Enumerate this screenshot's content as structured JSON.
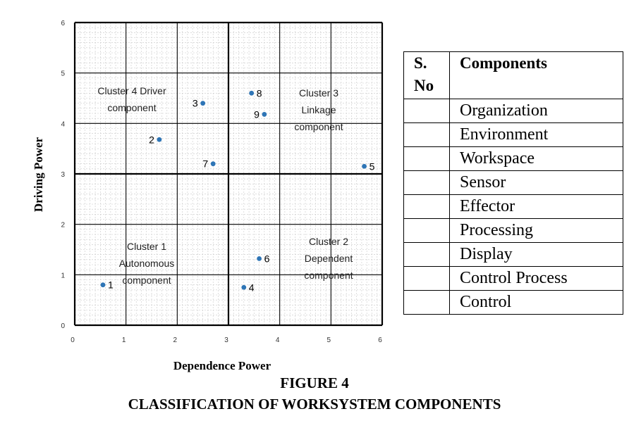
{
  "chart_data": {
    "type": "scatter",
    "xlabel": "Dependence Power",
    "ylabel": "Driving Power",
    "xlim": [
      0,
      6
    ],
    "ylim": [
      0,
      6
    ],
    "x_ticks": [
      "0",
      "1",
      "2",
      "3",
      "4",
      "5",
      "6"
    ],
    "y_ticks": [
      "0",
      "1",
      "2",
      "3",
      "4",
      "5",
      "6"
    ],
    "grid": "minor and major",
    "quadrant_divider": {
      "x": 3,
      "y": 3
    },
    "marker_color": "#2e75b6",
    "points": [
      {
        "label": "1",
        "x": 0.55,
        "y": 0.8
      },
      {
        "label": "2",
        "x": 1.65,
        "y": 3.68
      },
      {
        "label": "3",
        "x": 2.5,
        "y": 4.4
      },
      {
        "label": "4",
        "x": 3.3,
        "y": 0.75
      },
      {
        "label": "5",
        "x": 5.65,
        "y": 3.15
      },
      {
        "label": "6",
        "x": 3.6,
        "y": 1.32
      },
      {
        "label": "7",
        "x": 2.7,
        "y": 3.2
      },
      {
        "label": "8",
        "x": 3.45,
        "y": 4.6
      },
      {
        "label": "9",
        "x": 3.7,
        "y": 4.18
      }
    ],
    "clusters": [
      {
        "lines": [
          "Cluster 4 Driver",
          "component"
        ]
      },
      {
        "lines": [
          "Cluster 3",
          "Linkage",
          "component"
        ]
      },
      {
        "lines": [
          "Cluster 1",
          "Autonomous",
          "component"
        ]
      },
      {
        "lines": [
          "Cluster 2",
          "Dependent",
          "component"
        ]
      }
    ]
  },
  "table": {
    "header_sno": "S. No",
    "header_components": "Components",
    "rows": [
      "Organization",
      "Environment",
      "Workspace",
      "Sensor",
      "Effector",
      "Processing",
      "Display",
      "Control Process",
      "Control"
    ]
  },
  "caption": {
    "figure_number": "FIGURE 4",
    "figure_title": "CLASSIFICATION OF WORKSYSTEM COMPONENTS"
  }
}
